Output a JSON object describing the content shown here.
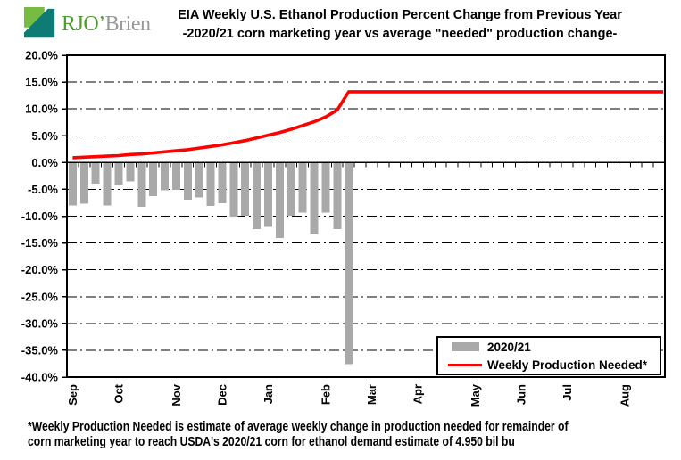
{
  "logo": {
    "brand_text_green": "RJO’",
    "brand_text_gray": "Brien",
    "colors": {
      "icon_green": "#76BC43",
      "icon_teal": "#0E7C74",
      "text_green": "#4E9D2D",
      "text_gray": "#97999B"
    }
  },
  "title": {
    "line1": "EIA Weekly U.S. Ethanol Production Percent Change from Previous Year",
    "line2": "-2020/21 corn marketing year vs average \"needed\" production change-"
  },
  "legend": {
    "bar_label": "2020/21",
    "line_label": "Weekly Production Needed*"
  },
  "footnote": {
    "line1": "*Weekly Production Needed is estimate of average weekly change in production needed for remainder of",
    "line2": "corn marketing year to reach USDA's 2020/21  corn for ethanol demand estimate of 4.950 bil bu"
  },
  "chart_data": {
    "type": "bar",
    "title": "EIA Weekly U.S. Ethanol Production Percent Change from Previous Year -2020/21 corn marketing year vs average \"needed\" production change-",
    "xlabel": "",
    "ylabel": "",
    "ylim": [
      -40,
      20
    ],
    "grid": "horizontal dash-dot every 5%",
    "legend_position": "bottom-right inside plot",
    "y_axis": {
      "min": -40,
      "max": 20,
      "step": 5,
      "tick_labels": [
        "20.0%",
        "15.0%",
        "10.0%",
        "5.0%",
        "0.0%",
        "-5.0%",
        "-10.0%",
        "-15.0%",
        "-20.0%",
        "-25.0%",
        "-30.0%",
        "-35.0%",
        "-40.0%"
      ]
    },
    "x_axis": {
      "month_labels": [
        "Sep",
        "Oct",
        "Nov",
        "Dec",
        "Jan",
        "Feb",
        "Mar",
        "Apr",
        "May",
        "Jun",
        "Jul",
        "Aug"
      ],
      "month_start_weeks": [
        0,
        4,
        9,
        13,
        17,
        22,
        26,
        30,
        35,
        39,
        43,
        48
      ],
      "total_weeks": 52
    },
    "series": [
      {
        "name": "2020/21",
        "type": "bar",
        "color": "#A9A9A9",
        "values": [
          -8.0,
          -7.7,
          -3.9,
          -8.0,
          -4.2,
          -3.5,
          -8.3,
          -6.3,
          -5.2,
          -5.1,
          -6.9,
          -6.5,
          -8.1,
          -7.6,
          -10.1,
          -9.9,
          -12.4,
          -12.0,
          -14.1,
          -9.9,
          -9.3,
          -13.4,
          -9.3,
          -12.4,
          -37.6
        ]
      },
      {
        "name": "Weekly Production Needed*",
        "type": "line",
        "color": "#FF0000",
        "values": [
          0.9,
          1.0,
          1.1,
          1.2,
          1.3,
          1.5,
          1.6,
          1.8,
          2.0,
          2.2,
          2.4,
          2.7,
          3.0,
          3.3,
          3.7,
          4.1,
          4.6,
          5.1,
          5.6,
          6.2,
          6.9,
          7.6,
          8.5,
          9.8,
          13.2
        ],
        "flat_extension_value": 13.2,
        "flat_extension_to_week": 52
      }
    ]
  }
}
